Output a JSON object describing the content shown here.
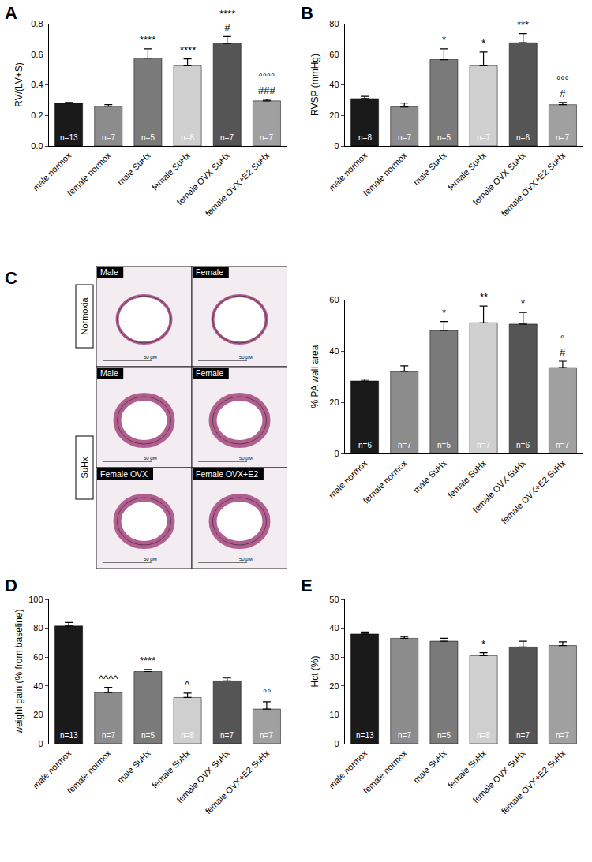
{
  "chart_data": [
    {
      "type": "bar",
      "panel": "A",
      "ylabel": "RV/(LV+S)",
      "categories": [
        "male normox",
        "female normox",
        "male SuHx",
        "female SuHx",
        "female OVX SuHx",
        "female OVX+E2 SuHx"
      ],
      "values": [
        0.28,
        0.26,
        0.575,
        0.525,
        0.67,
        0.295
      ],
      "errors": [
        0.005,
        0.01,
        0.06,
        0.045,
        0.045,
        0.01
      ],
      "bar_labels": [
        "n=13",
        "n=7",
        "n=5",
        "n=8",
        "n=7",
        "n=7"
      ],
      "significance": [
        null,
        null,
        [
          "****"
        ],
        [
          "****"
        ],
        [
          "****",
          "#"
        ],
        [
          "°°°°",
          "###"
        ]
      ],
      "colors": [
        "#1a1a1a",
        "#8c8c8c",
        "#7a7a7a",
        "#cfcfcf",
        "#555555",
        "#a0a0a0"
      ],
      "ylim": [
        0,
        0.8
      ],
      "yticks": [
        {
          "value": 0,
          "label": "0.0"
        },
        {
          "value": 0.2,
          "label": "0.2"
        },
        {
          "value": 0.4,
          "label": "0.4"
        },
        {
          "value": 0.6,
          "label": "0.6"
        },
        {
          "value": 0.8,
          "label": "0.8"
        }
      ],
      "grid": false
    },
    {
      "type": "bar",
      "panel": "B",
      "ylabel": "RVSP (mmHg)",
      "categories": [
        "male normox",
        "female normox",
        "male SuHx",
        "female SuHx",
        "female OVX SuHx",
        "female OVX+E2 SuHx"
      ],
      "values": [
        31,
        25.5,
        56.5,
        52.5,
        67.5,
        27
      ],
      "errors": [
        1.5,
        2.5,
        7,
        9,
        6,
        1.5
      ],
      "bar_labels": [
        "n=8",
        "n=7",
        "n=5",
        "n=7",
        "n=6",
        "n=7"
      ],
      "significance": [
        null,
        null,
        [
          "*"
        ],
        [
          "*"
        ],
        [
          "***"
        ],
        [
          "°°°",
          "#"
        ]
      ],
      "colors": [
        "#1a1a1a",
        "#8c8c8c",
        "#7a7a7a",
        "#cfcfcf",
        "#555555",
        "#a0a0a0"
      ],
      "ylim": [
        0,
        80
      ],
      "yticks": [
        0,
        20,
        40,
        60,
        80
      ],
      "grid": false
    },
    {
      "type": "bar",
      "panel": "C",
      "ylabel": "% PA wall area",
      "categories": [
        "male normox",
        "female normox",
        "male SuHx",
        "female SuHx",
        "female OVX SuHx",
        "female OVX+E2 SuHx"
      ],
      "values": [
        28.3,
        32,
        48,
        51,
        50.5,
        33.5
      ],
      "errors": [
        0.7,
        2.2,
        3.5,
        6.5,
        4.5,
        2.5
      ],
      "bar_labels": [
        "n=6",
        "n=7",
        "n=5",
        "n=7",
        "n=6",
        "n=7"
      ],
      "significance": [
        null,
        null,
        [
          "*"
        ],
        [
          "**"
        ],
        [
          "*"
        ],
        [
          "°",
          "#"
        ]
      ],
      "colors": [
        "#1a1a1a",
        "#8c8c8c",
        "#7a7a7a",
        "#cfcfcf",
        "#555555",
        "#a0a0a0"
      ],
      "ylim": [
        0,
        60
      ],
      "yticks": [
        0,
        20,
        40,
        60
      ],
      "grid": false,
      "images": {
        "groups": [
          {
            "label": "Normoxia",
            "panels": [
              {
                "label": "Male",
                "scale_bar": "50 μM"
              },
              {
                "label": "Female",
                "scale_bar": "50 μM"
              }
            ]
          },
          {
            "label": "SuHx",
            "panels": [
              {
                "label": "Male",
                "scale_bar": "50 μM"
              },
              {
                "label": "Female",
                "scale_bar": "50 μM"
              },
              {
                "label": "Female OVX",
                "scale_bar": "50 μM"
              },
              {
                "label": "Female OVX+E2",
                "scale_bar": "50 μM"
              }
            ]
          }
        ]
      }
    },
    {
      "type": "bar",
      "panel": "D",
      "ylabel": "weight gain (% from baseline)",
      "categories": [
        "male normox",
        "female normox",
        "male SuHx",
        "female SuHx",
        "female OVX SuHx",
        "female OVX+E2 SuHx"
      ],
      "values": [
        81.5,
        35.5,
        50,
        32,
        43.5,
        24
      ],
      "errors": [
        2.5,
        3.5,
        1.5,
        3,
        2,
        5
      ],
      "bar_labels": [
        "n=13",
        "n=7",
        "n=5",
        "n=8",
        "n=7",
        "n=7"
      ],
      "significance": [
        null,
        [
          "^^^^"
        ],
        [
          "****"
        ],
        [
          "^"
        ],
        null,
        [
          "°°"
        ]
      ],
      "colors": [
        "#1a1a1a",
        "#8c8c8c",
        "#7a7a7a",
        "#cfcfcf",
        "#555555",
        "#a0a0a0"
      ],
      "ylim": [
        0,
        100
      ],
      "yticks": [
        0,
        20,
        40,
        60,
        80,
        100
      ],
      "grid": false
    },
    {
      "type": "bar",
      "panel": "E",
      "ylabel": "Hct (%)",
      "categories": [
        "male normox",
        "female normox",
        "male SuHx",
        "female SuHx",
        "female OVX SuHx",
        "female OVX+E2 SuHx"
      ],
      "values": [
        38,
        36.5,
        35.5,
        30.5,
        33.5,
        34
      ],
      "errors": [
        0.7,
        0.6,
        1,
        1,
        2,
        1.3
      ],
      "bar_labels": [
        "n=13",
        "n=7",
        "n=5",
        "n=8",
        "n=7",
        "n=7"
      ],
      "significance": [
        null,
        null,
        null,
        [
          "*"
        ],
        null,
        null
      ],
      "colors": [
        "#1a1a1a",
        "#8c8c8c",
        "#7a7a7a",
        "#cfcfcf",
        "#555555",
        "#a0a0a0"
      ],
      "ylim": [
        0,
        50
      ],
      "yticks": [
        0,
        10,
        20,
        30,
        40,
        50
      ],
      "grid": false
    }
  ]
}
